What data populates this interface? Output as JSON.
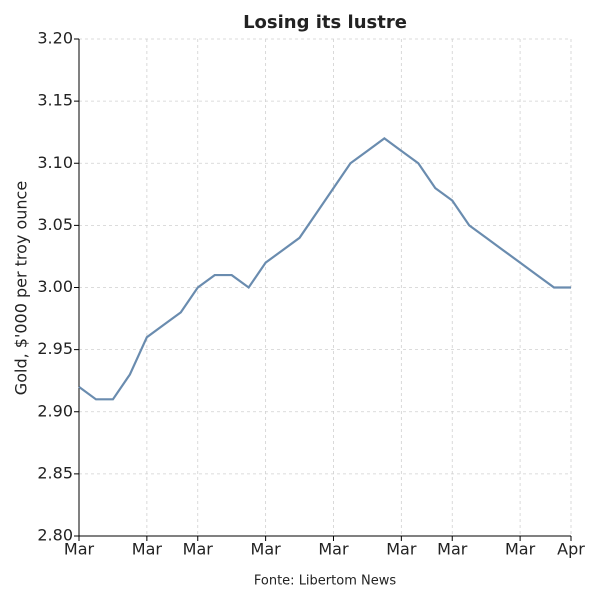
{
  "chart_data": {
    "type": "line",
    "title": "Losing its lustre",
    "ylabel": "Gold, $'000 per troy ounce",
    "source": "Fonte: Libertom News",
    "categories": [
      "Mar",
      null,
      null,
      null,
      "Mar",
      null,
      null,
      "Mar",
      null,
      null,
      null,
      "Mar",
      null,
      null,
      null,
      "Mar",
      null,
      null,
      null,
      "Mar",
      null,
      null,
      "Mar",
      null,
      null,
      null,
      "Mar",
      null,
      null,
      "Apr"
    ],
    "series": [
      {
        "color": "#6a8caf",
        "values": [
          2.92,
          2.91,
          2.91,
          2.93,
          2.96,
          2.97,
          2.98,
          3.0,
          3.01,
          3.01,
          3.0,
          3.02,
          3.03,
          3.04,
          3.06,
          3.08,
          3.1,
          3.11,
          3.12,
          3.11,
          3.1,
          3.08,
          3.07,
          3.05,
          3.04,
          3.03,
          3.02,
          3.01,
          3.0,
          3.0
        ]
      }
    ],
    "ylim": [
      2.8,
      3.2
    ],
    "yticks": [
      {
        "value": 2.8,
        "label": "2.80"
      },
      2.85,
      {
        "value": 2.9,
        "label": "2.90"
      },
      2.95,
      {
        "value": 3.0,
        "label": "3.00"
      },
      3.05,
      {
        "value": 3.1,
        "label": "3.10"
      },
      3.15,
      {
        "value": 3.2,
        "label": "3.20"
      }
    ],
    "grid": true
  }
}
